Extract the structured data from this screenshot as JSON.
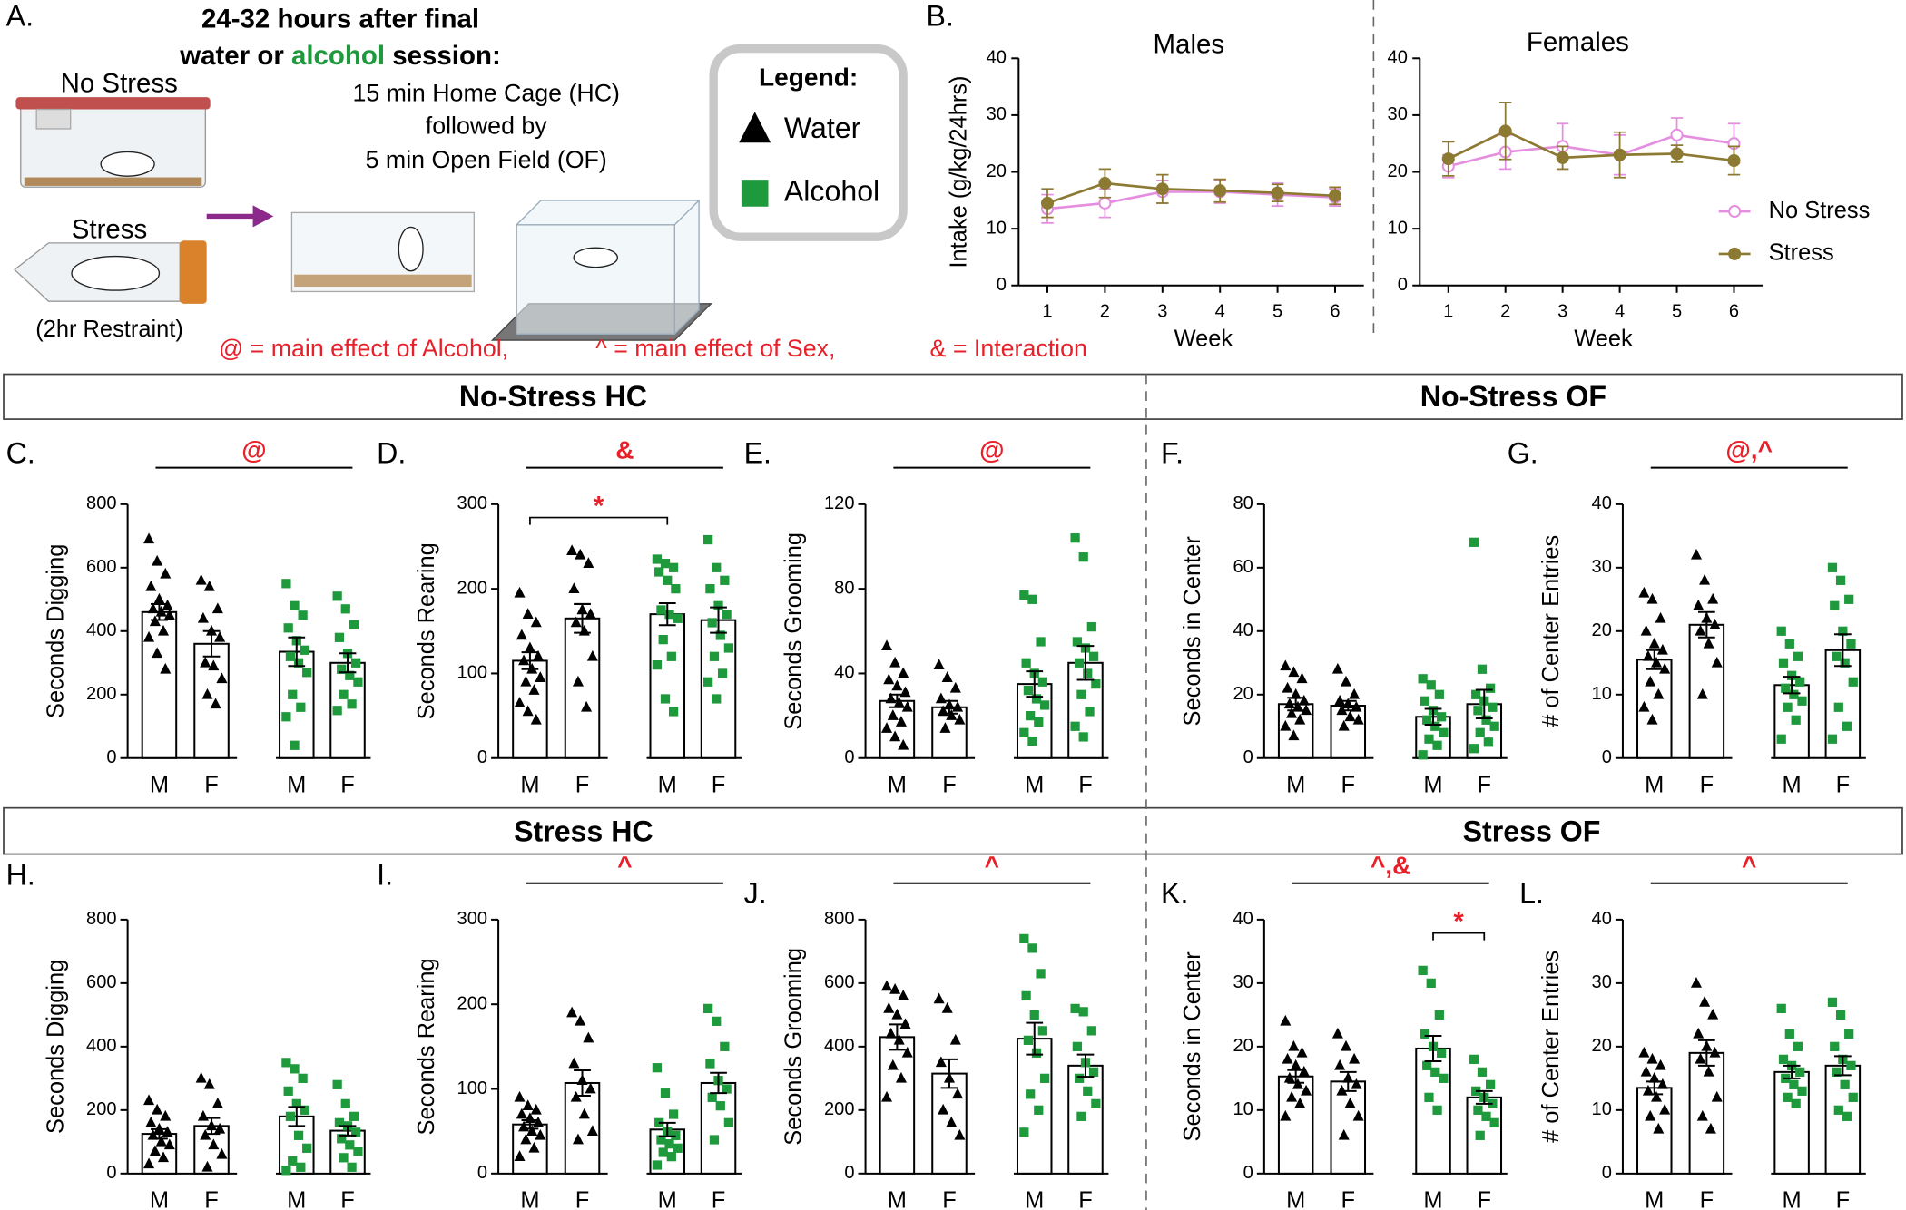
{
  "panel_a": {
    "label": "A.",
    "title_line1": "24-32 hours after final",
    "title_water": "water or ",
    "title_alcohol": "alcohol",
    "title_session": " session:",
    "no_stress": "No Stress",
    "stress": "Stress",
    "restraint": "(2hr Restraint)",
    "step1": "15 min Home Cage (HC)",
    "step2": "followed by",
    "step3": "5 min Open Field (OF)"
  },
  "legend": {
    "title": "Legend:",
    "items": [
      {
        "label": "Water",
        "marker": "triangle",
        "color": "#000000"
      },
      {
        "label": "Alcohol",
        "marker": "square",
        "color": "#1e9a3c"
      }
    ]
  },
  "effects": [
    "@ = main effect of Alcohol,",
    "^ =  main effect of Sex,",
    "& = Interaction"
  ],
  "sections": [
    "No-Stress HC",
    "No-Stress OF",
    "Stress HC",
    "Stress OF"
  ],
  "chart_data": [
    {
      "type": "line",
      "panel": "B.",
      "title": "Males",
      "ylabel": "Intake (g/kg/24hrs)",
      "xlabel": "Week",
      "x": [
        1,
        2,
        3,
        4,
        5,
        6
      ],
      "xlim": [
        0.5,
        6.5
      ],
      "xticks": [
        1,
        2,
        3,
        4,
        5,
        6
      ],
      "ylim": [
        0,
        40
      ],
      "yticks": [
        0,
        10,
        20,
        30,
        40
      ],
      "series": [
        {
          "color": "#e58ee0",
          "values": [
            13.5,
            14.5,
            16.5,
            16.5,
            16,
            15.5
          ],
          "errors": [
            2.5,
            2.5,
            2,
            2,
            2,
            1.5
          ]
        },
        {
          "color": "#8c7a32",
          "values": [
            14.5,
            18,
            17,
            16.7,
            16.3,
            15.8
          ],
          "errors": [
            2.5,
            2.5,
            2.5,
            2,
            1.5,
            1.5
          ]
        }
      ]
    },
    {
      "type": "line",
      "title": "Females",
      "xlabel": "Week",
      "x": [
        1,
        2,
        3,
        4,
        5,
        6
      ],
      "xlim": [
        0.5,
        6.5
      ],
      "xticks": [
        1,
        2,
        3,
        4,
        5,
        6
      ],
      "ylim": [
        0,
        40
      ],
      "yticks": [
        0,
        10,
        20,
        30,
        40
      ],
      "legend": "right",
      "series": [
        {
          "name": "No Stress",
          "color": "#e58ee0",
          "values": [
            21,
            23.5,
            24.5,
            23,
            26.5,
            25
          ],
          "errors": [
            2,
            3,
            4,
            3.5,
            3,
            3.5
          ]
        },
        {
          "name": "Stress",
          "color": "#8c7a32",
          "values": [
            22.3,
            27.2,
            22.5,
            23,
            23.2,
            22
          ],
          "errors": [
            3,
            5,
            2,
            4,
            1.5,
            2.5
          ]
        }
      ]
    },
    {
      "type": "bar",
      "panel": "C.",
      "ylabel": "Seconds Digging",
      "annotation": "@",
      "categories": [
        "M",
        "F",
        "M",
        "F"
      ],
      "ylim": [
        0,
        800
      ],
      "yticks": [
        0,
        200,
        400,
        600,
        800
      ],
      "colors": [
        "#000000",
        "#000000",
        "#1e9a3c",
        "#1e9a3c"
      ],
      "markers": [
        "triangle",
        "triangle",
        "square",
        "square"
      ],
      "values": [
        460,
        360,
        335,
        300
      ],
      "errors": [
        25,
        40,
        45,
        30
      ],
      "points": [
        [
          690,
          620,
          580,
          540,
          500,
          480,
          470,
          460,
          450,
          430,
          400,
          380,
          330,
          280
        ],
        [
          560,
          540,
          470,
          440,
          400,
          380,
          300,
          290,
          250,
          200,
          170
        ],
        [
          550,
          480,
          450,
          410,
          370,
          340,
          320,
          300,
          270,
          200,
          160,
          130,
          40
        ],
        [
          510,
          470,
          420,
          380,
          330,
          300,
          280,
          260,
          240,
          200,
          170,
          150
        ]
      ]
    },
    {
      "type": "bar",
      "panel": "D.",
      "ylabel": "Seconds Rearing",
      "annotation": "&",
      "bracket": "*",
      "categories": [
        "M",
        "F",
        "M",
        "F"
      ],
      "ylim": [
        0,
        300
      ],
      "yticks": [
        0,
        100,
        200,
        300
      ],
      "colors": [
        "#000000",
        "#000000",
        "#1e9a3c",
        "#1e9a3c"
      ],
      "markers": [
        "triangle",
        "triangle",
        "square",
        "square"
      ],
      "values": [
        115,
        165,
        170,
        163
      ],
      "errors": [
        10,
        17,
        13,
        15
      ],
      "points": [
        [
          195,
          170,
          160,
          145,
          130,
          120,
          115,
          105,
          95,
          90,
          80,
          65,
          55,
          45
        ],
        [
          245,
          240,
          230,
          200,
          175,
          170,
          160,
          150,
          120,
          90,
          60
        ],
        [
          235,
          230,
          225,
          220,
          210,
          200,
          175,
          170,
          165,
          140,
          120,
          110,
          70,
          55
        ],
        [
          258,
          225,
          210,
          200,
          180,
          170,
          160,
          145,
          130,
          120,
          100,
          90,
          70
        ]
      ]
    },
    {
      "type": "bar",
      "panel": "E.",
      "ylabel": "Seconds Grooming",
      "annotation": "@",
      "categories": [
        "M",
        "F",
        "M",
        "F"
      ],
      "ylim": [
        0,
        120
      ],
      "yticks": [
        0,
        40,
        80,
        120
      ],
      "colors": [
        "#000000",
        "#000000",
        "#1e9a3c",
        "#1e9a3c"
      ],
      "markers": [
        "triangle",
        "triangle",
        "square",
        "square"
      ],
      "values": [
        27,
        24,
        35,
        45
      ],
      "errors": [
        3,
        3,
        6,
        8
      ],
      "points": [
        [
          53,
          45,
          40,
          37,
          34,
          31,
          28,
          26,
          24,
          20,
          17,
          14,
          10,
          6
        ],
        [
          44,
          38,
          33,
          28,
          25,
          24,
          22,
          20,
          18,
          14
        ],
        [
          77,
          75,
          55,
          45,
          40,
          36,
          32,
          28,
          25,
          20,
          17,
          12,
          8
        ],
        [
          104,
          95,
          62,
          55,
          52,
          48,
          45,
          40,
          35,
          30,
          22,
          15,
          10
        ]
      ]
    },
    {
      "type": "bar",
      "panel": "F.",
      "ylabel": "Seconds in Center",
      "categories": [
        "M",
        "F",
        "M",
        "F"
      ],
      "ylim": [
        0,
        80
      ],
      "yticks": [
        0,
        20,
        40,
        60,
        80
      ],
      "colors": [
        "#000000",
        "#000000",
        "#1e9a3c",
        "#1e9a3c"
      ],
      "markers": [
        "triangle",
        "triangle",
        "square",
        "square"
      ],
      "values": [
        17,
        16.5,
        13,
        17
      ],
      "errors": [
        2,
        1.5,
        2.5,
        4.5
      ],
      "points": [
        [
          29,
          27,
          25,
          22,
          20,
          18,
          17,
          16,
          15,
          14,
          12,
          10,
          7
        ],
        [
          28,
          24,
          20,
          18,
          17,
          16,
          15,
          13,
          12,
          10
        ],
        [
          25,
          23,
          20,
          18,
          15,
          13,
          12,
          10,
          8,
          6,
          4,
          1
        ],
        [
          68,
          28,
          22,
          20,
          18,
          16,
          15,
          12,
          10,
          8,
          5,
          3
        ]
      ]
    },
    {
      "type": "bar",
      "panel": "G.",
      "ylabel": "# of Center Entries",
      "annotation": "@,^",
      "categories": [
        "M",
        "F",
        "M",
        "F"
      ],
      "ylim": [
        0,
        40
      ],
      "yticks": [
        0,
        10,
        20,
        30,
        40
      ],
      "colors": [
        "#000000",
        "#000000",
        "#1e9a3c",
        "#1e9a3c"
      ],
      "markers": [
        "triangle",
        "triangle",
        "square",
        "square"
      ],
      "values": [
        15.5,
        21,
        11.5,
        17
      ],
      "errors": [
        1.5,
        2,
        1.3,
        2.5
      ],
      "points": [
        [
          26,
          25,
          22,
          20,
          18,
          17,
          16,
          15,
          14,
          12,
          10,
          8,
          6
        ],
        [
          32,
          28,
          25,
          24,
          22,
          21,
          20,
          18,
          15,
          10
        ],
        [
          20,
          18,
          16,
          15,
          13,
          12,
          11,
          10,
          9,
          8,
          6,
          3
        ],
        [
          30,
          28,
          25,
          24,
          20,
          18,
          16,
          15,
          12,
          8,
          5,
          3
        ]
      ]
    },
    {
      "type": "bar",
      "panel": "H.",
      "ylabel": "Seconds Digging",
      "categories": [
        "M",
        "F",
        "M",
        "F"
      ],
      "ylim": [
        0,
        800
      ],
      "yticks": [
        0,
        200,
        400,
        600,
        800
      ],
      "colors": [
        "#000000",
        "#000000",
        "#1e9a3c",
        "#1e9a3c"
      ],
      "markers": [
        "triangle",
        "triangle",
        "square",
        "square"
      ],
      "values": [
        125,
        150,
        180,
        135
      ],
      "errors": [
        15,
        25,
        30,
        15
      ],
      "points": [
        [
          230,
          200,
          180,
          160,
          140,
          130,
          120,
          100,
          90,
          70,
          50,
          30
        ],
        [
          300,
          280,
          220,
          180,
          150,
          140,
          120,
          90,
          60,
          20
        ],
        [
          350,
          330,
          300,
          260,
          220,
          200,
          180,
          120,
          80,
          40,
          20,
          10
        ],
        [
          280,
          220,
          180,
          160,
          150,
          130,
          110,
          90,
          70,
          50,
          20
        ]
      ]
    },
    {
      "type": "bar",
      "panel": "I.",
      "ylabel": "Seconds Rearing",
      "annotation": "^",
      "categories": [
        "M",
        "F",
        "M",
        "F"
      ],
      "ylim": [
        0,
        300
      ],
      "yticks": [
        0,
        100,
        200,
        300
      ],
      "colors": [
        "#000000",
        "#000000",
        "#1e9a3c",
        "#1e9a3c"
      ],
      "markers": [
        "triangle",
        "triangle",
        "square",
        "square"
      ],
      "values": [
        58,
        107,
        52,
        107
      ],
      "errors": [
        5,
        15,
        8,
        12
      ],
      "points": [
        [
          90,
          80,
          75,
          70,
          65,
          60,
          55,
          50,
          45,
          40,
          30,
          20
        ],
        [
          190,
          180,
          160,
          130,
          110,
          100,
          90,
          70,
          50,
          40
        ],
        [
          125,
          95,
          70,
          60,
          50,
          45,
          40,
          35,
          30,
          25,
          20,
          10
        ],
        [
          195,
          180,
          150,
          130,
          110,
          100,
          90,
          80,
          60,
          40
        ]
      ]
    },
    {
      "type": "bar",
      "panel": "J.",
      "ylabel": "Seconds Grooming",
      "annotation": "^",
      "categories": [
        "M",
        "F",
        "M",
        "F"
      ],
      "ylim": [
        0,
        800
      ],
      "yticks": [
        0,
        200,
        400,
        600,
        800
      ],
      "colors": [
        "#000000",
        "#000000",
        "#1e9a3c",
        "#1e9a3c"
      ],
      "markers": [
        "triangle",
        "triangle",
        "square",
        "square"
      ],
      "values": [
        430,
        315,
        425,
        340
      ],
      "errors": [
        40,
        45,
        50,
        35
      ],
      "points": [
        [
          590,
          580,
          560,
          520,
          500,
          470,
          440,
          420,
          380,
          340,
          300,
          240
        ],
        [
          550,
          520,
          420,
          350,
          300,
          250,
          200,
          160,
          120
        ],
        [
          740,
          710,
          630,
          560,
          500,
          450,
          420,
          380,
          300,
          250,
          200,
          130
        ],
        [
          520,
          510,
          450,
          400,
          350,
          320,
          300,
          260,
          220,
          180
        ]
      ]
    },
    {
      "type": "bar",
      "panel": "K.",
      "ylabel": "Seconds in Center",
      "annotation": "^,&",
      "bracket": "*",
      "categories": [
        "M",
        "F",
        "M",
        "F"
      ],
      "ylim": [
        0,
        40
      ],
      "yticks": [
        0,
        10,
        20,
        30,
        40
      ],
      "colors": [
        "#000000",
        "#000000",
        "#1e9a3c",
        "#1e9a3c"
      ],
      "markers": [
        "triangle",
        "triangle",
        "square",
        "square"
      ],
      "values": [
        15.3,
        14.5,
        19.7,
        12
      ],
      "errors": [
        1,
        1.5,
        2,
        1
      ],
      "points": [
        [
          24,
          20,
          19,
          18,
          17,
          16,
          15,
          14,
          13,
          12,
          11,
          9
        ],
        [
          22,
          20,
          18,
          17,
          15,
          14,
          13,
          11,
          9,
          6
        ],
        [
          32,
          30,
          25,
          22,
          20,
          19,
          17,
          16,
          15,
          12,
          10
        ],
        [
          18,
          16,
          14,
          13,
          12,
          11,
          10,
          9,
          8,
          6
        ]
      ]
    },
    {
      "type": "bar",
      "panel": "L.",
      "ylabel": "# of Center Entries",
      "annotation": "^",
      "categories": [
        "M",
        "F",
        "M",
        "F"
      ],
      "ylim": [
        0,
        40
      ],
      "yticks": [
        0,
        10,
        20,
        30,
        40
      ],
      "colors": [
        "#000000",
        "#000000",
        "#1e9a3c",
        "#1e9a3c"
      ],
      "markers": [
        "triangle",
        "triangle",
        "square",
        "square"
      ],
      "values": [
        13.5,
        19,
        16,
        17
      ],
      "errors": [
        1,
        2,
        1,
        1.5
      ],
      "points": [
        [
          19,
          18,
          17,
          16,
          15,
          14,
          13,
          12,
          10,
          9,
          7
        ],
        [
          30,
          27,
          25,
          22,
          20,
          19,
          18,
          16,
          12,
          9,
          7
        ],
        [
          26,
          22,
          20,
          18,
          17,
          16,
          15,
          14,
          13,
          12,
          11
        ],
        [
          27,
          25,
          22,
          20,
          18,
          17,
          16,
          14,
          12,
          10,
          9
        ]
      ]
    }
  ]
}
